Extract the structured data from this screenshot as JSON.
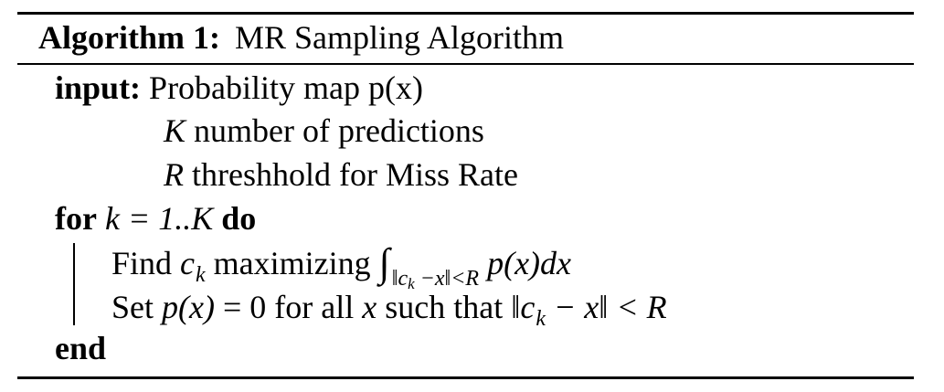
{
  "algorithm": {
    "label": "Algorithm 1:",
    "title": "MR Sampling Algorithm",
    "input_keyword": "input:",
    "inputs": [
      {
        "symbol": "",
        "text": "Probability map p(x)"
      },
      {
        "symbol": "K",
        "text": " number of predictions"
      },
      {
        "symbol": "R",
        "text": " threshhold for Miss Rate"
      }
    ],
    "loop": {
      "keyword_for": "for",
      "range": "k = 1..K",
      "keyword_do": "do",
      "keyword_end": "end"
    },
    "body": {
      "step1_prefix": "Find ",
      "step1_var": "c",
      "step1_var_sub": "k",
      "step1_mid": " maximizing ",
      "step1_integral": "∫",
      "step1_integral_sub": "‖c",
      "step1_integral_sub_k": "k",
      "step1_integral_sub_rest": " −x‖<R",
      "step1_integrand": " p(x)dx",
      "step2_prefix": "Set ",
      "step2_expr1": "p(x)",
      "step2_eq": " = 0 for all ",
      "step2_var": "x",
      "step2_mid": " such that ",
      "step2_norm_open": "‖c",
      "step2_norm_sub": "k",
      "step2_norm_rest": " − x‖ < ",
      "step2_R": "R"
    }
  }
}
